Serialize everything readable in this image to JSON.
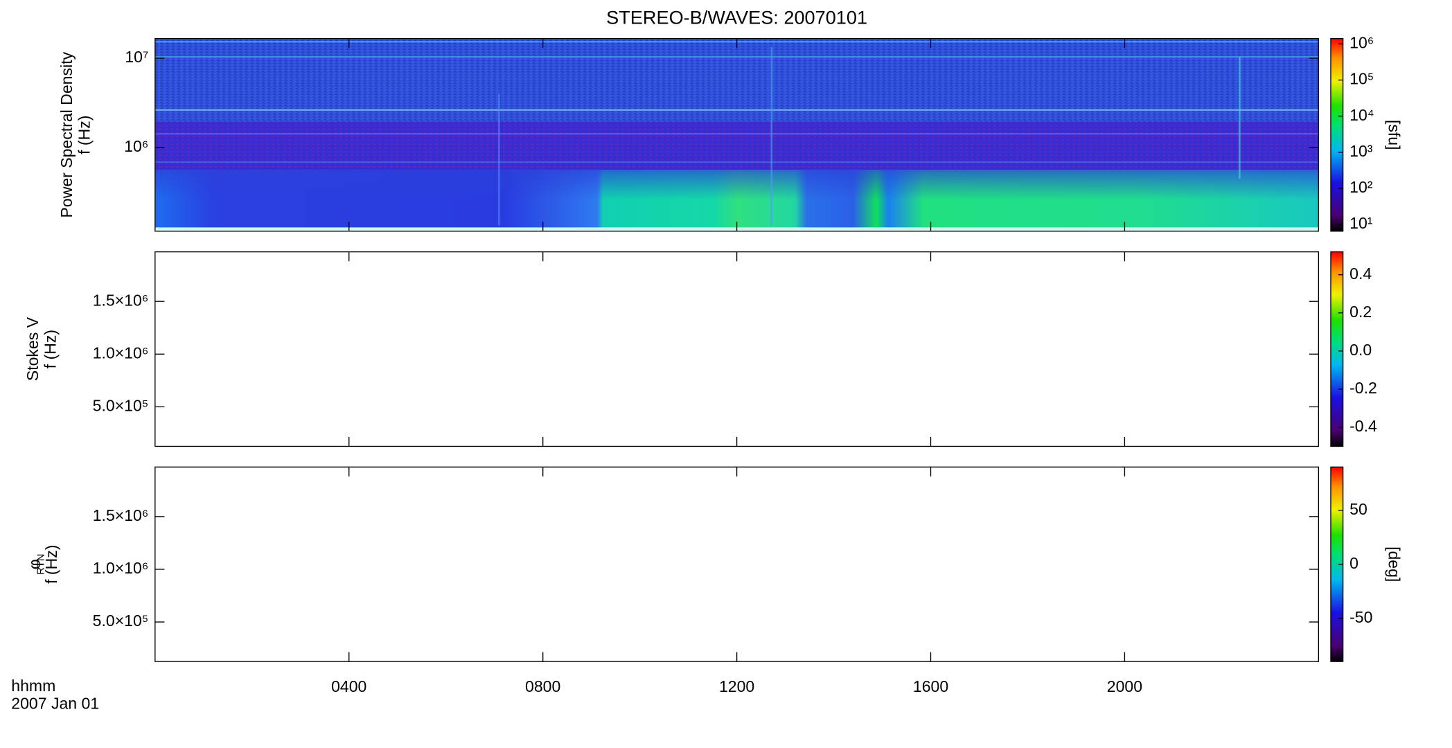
{
  "title": "STEREO-B/WAVES: 20070101",
  "x_label_lines": [
    "hhmm",
    "2007 Jan 01"
  ],
  "chart_data": [
    {
      "type": "heatmap",
      "ylabel_lines": [
        "Power Spectral Density",
        "f (Hz)"
      ],
      "ylim": [
        115000,
        16600000
      ],
      "log_y": true,
      "yticks": [
        {
          "value": 1000000,
          "label": "10⁶"
        },
        {
          "value": 10000000,
          "label": "10⁷"
        }
      ],
      "clim": [
        6.5,
        1410000
      ],
      "log_c": true,
      "cticks": [
        {
          "value": 10,
          "label": "10¹"
        },
        {
          "value": 100,
          "label": "10²"
        },
        {
          "value": 1000,
          "label": "10³"
        },
        {
          "value": 10000,
          "label": "10⁴"
        },
        {
          "value": 100000,
          "label": "10⁵"
        },
        {
          "value": 1000000,
          "label": "10⁶"
        }
      ],
      "clabel": "[sfu]",
      "xlim": [
        0,
        24
      ]
    },
    {
      "type": "heatmap",
      "ylabel_lines": [
        "Stokes V",
        "f (Hz)"
      ],
      "ylim": [
        125000,
        1970000
      ],
      "log_y": false,
      "yticks": [
        {
          "value": 500000,
          "label": "5.0×10⁵"
        },
        {
          "value": 1000000,
          "label": "1.0×10⁶"
        },
        {
          "value": 1500000,
          "label": "1.5×10⁶"
        }
      ],
      "clim": [
        -0.5,
        0.52
      ],
      "log_c": false,
      "cticks": [
        -0.4,
        -0.2,
        {
          "value": 0,
          "label": "0.0"
        },
        0.2,
        0.4
      ],
      "xlim": [
        0,
        24
      ]
    },
    {
      "type": "heatmap",
      "ylabel_lines": [
        "φ",
        "RTN",
        "f (Hz)"
      ],
      "ylim": [
        125000,
        1970000
      ],
      "log_y": false,
      "yticks": [
        {
          "value": 500000,
          "label": "5.0×10⁵"
        },
        {
          "value": 1000000,
          "label": "1.0×10⁶"
        },
        {
          "value": 1500000,
          "label": "1.5×10⁶"
        }
      ],
      "clim": [
        -90,
        90
      ],
      "log_c": false,
      "cticks": [
        -50,
        0,
        50
      ],
      "clabel": "[deg]",
      "xlim": [
        0,
        24
      ],
      "xticks": [
        {
          "value": 4,
          "label": "0400"
        },
        {
          "value": 8,
          "label": "0800"
        },
        {
          "value": 12,
          "label": "1200"
        },
        {
          "value": 16,
          "label": "1600"
        },
        {
          "value": 20,
          "label": "2000"
        }
      ]
    }
  ]
}
